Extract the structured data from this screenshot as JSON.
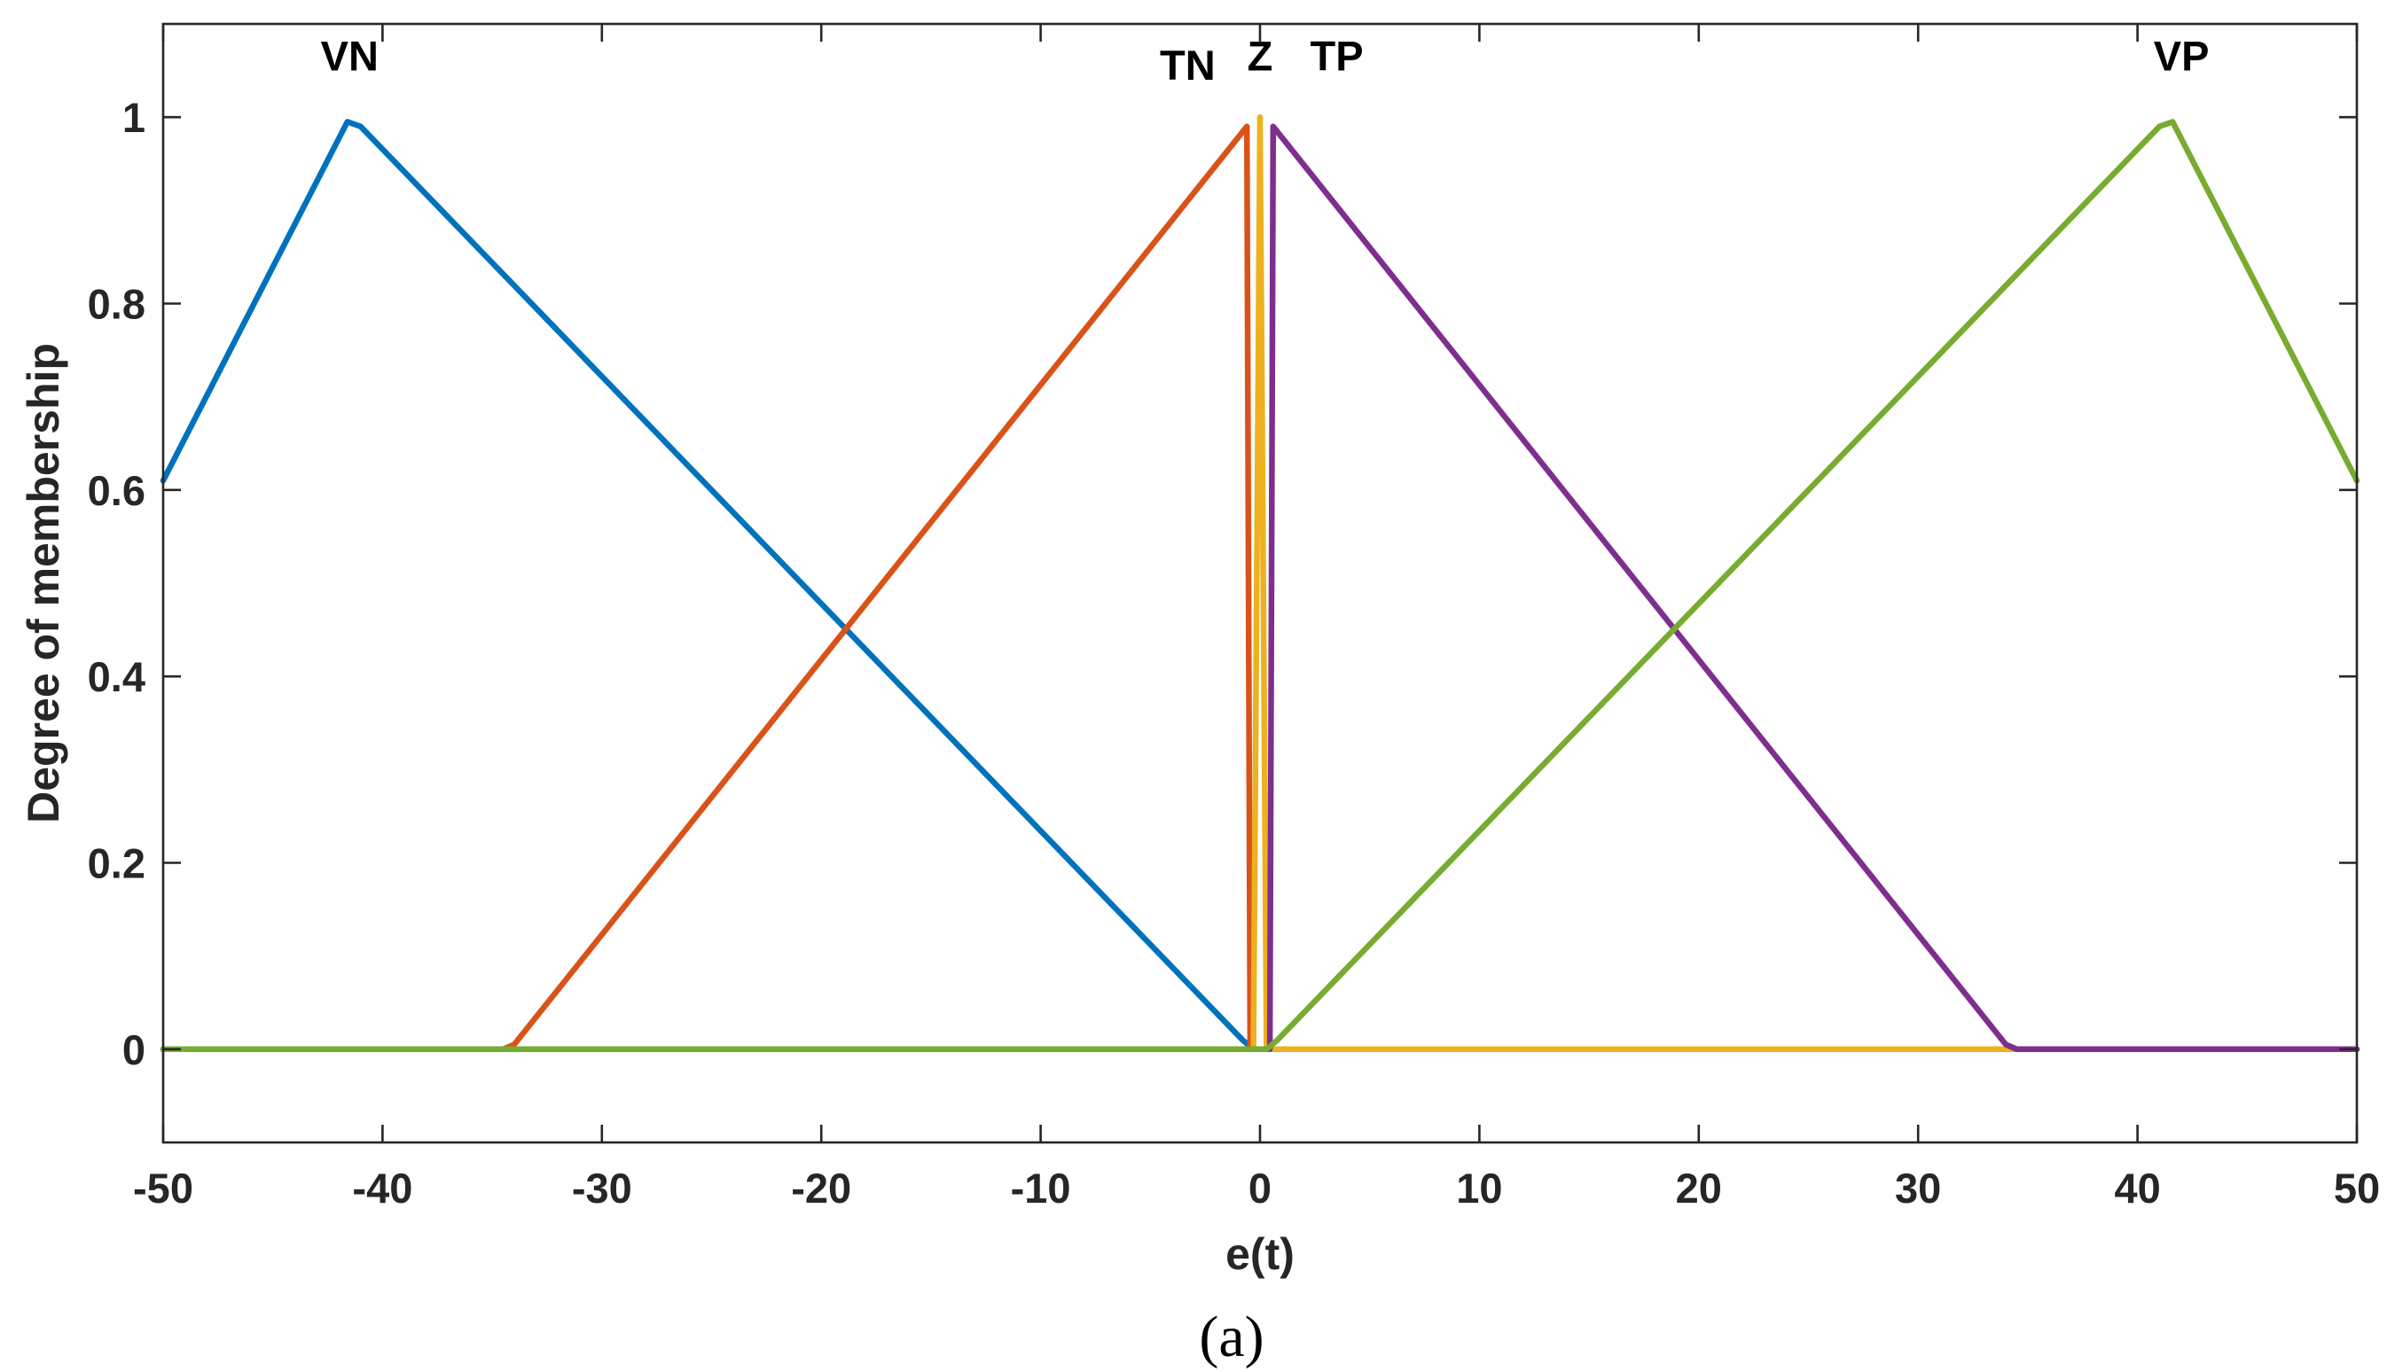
{
  "chart_data": {
    "type": "line",
    "title": "",
    "xlabel": "e(t)",
    "ylabel": "Degree of membership",
    "xlim": [
      -50,
      50
    ],
    "ylim": [
      -0.1,
      1.1
    ],
    "xticks": [
      -50,
      -40,
      -30,
      -20,
      -10,
      0,
      10,
      20,
      30,
      40,
      50
    ],
    "xtick_labels": [
      "-50",
      "-40",
      "-30",
      "-20",
      "-10",
      "0",
      "10",
      "20",
      "30",
      "40",
      "50"
    ],
    "yticks": [
      0,
      0.2,
      0.4,
      0.6,
      0.8,
      1
    ],
    "ytick_labels": [
      "0",
      "0.2",
      "0.4",
      "0.6",
      "0.8",
      "1"
    ],
    "grid": false,
    "series": [
      {
        "name": "VN",
        "color": "#0072BD",
        "x": [
          -50,
          -41.6,
          -41.0,
          -0.8,
          -0.3,
          0,
          50
        ],
        "y": [
          0.61,
          0.995,
          0.99,
          0.01,
          0,
          0,
          0
        ]
      },
      {
        "name": "TN",
        "color": "#D95319",
        "x": [
          -50,
          -34.5,
          -34.0,
          -0.6,
          -0.45,
          0,
          50
        ],
        "y": [
          0,
          0,
          0.005,
          0.99,
          0,
          0,
          0
        ]
      },
      {
        "name": "Z",
        "color": "#EDB120",
        "x": [
          -50,
          -0.3,
          0,
          0.3,
          50
        ],
        "y": [
          0,
          0,
          1,
          0,
          0
        ]
      },
      {
        "name": "TP",
        "color": "#7E2F8E",
        "x": [
          -50,
          0,
          0.45,
          0.6,
          34.0,
          34.5,
          50
        ],
        "y": [
          0,
          0,
          0,
          0.99,
          0.005,
          0,
          0
        ]
      },
      {
        "name": "VP",
        "color": "#77AC30",
        "x": [
          -50,
          -0.6,
          0.3,
          0.8,
          41.0,
          41.6,
          50
        ],
        "y": [
          0,
          0,
          0,
          0.01,
          0.99,
          0.995,
          0.61
        ]
      }
    ],
    "annotations": [
      {
        "text": "VN",
        "x": -41.5,
        "y": 1.05
      },
      {
        "text": "TN",
        "x": -3.3,
        "y": 1.04
      },
      {
        "text": "Z",
        "x": 0.0,
        "y": 1.05
      },
      {
        "text": "TP",
        "x": 3.5,
        "y": 1.05
      },
      {
        "text": "VP",
        "x": 42.0,
        "y": 1.05
      }
    ]
  },
  "caption": "(a)"
}
